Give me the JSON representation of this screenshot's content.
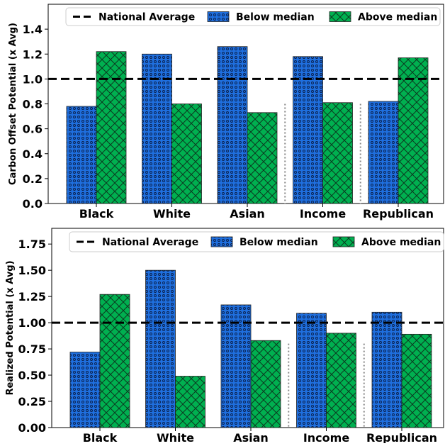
{
  "chart_data": [
    {
      "type": "bar",
      "title": "",
      "xlabel": "",
      "ylabel": "Carbon Offset Potential (x Avg)",
      "ylim": [
        0,
        1.6
      ],
      "yticks": [
        "0.0",
        "0.2",
        "0.4",
        "0.6",
        "0.8",
        "1.0",
        "1.2",
        "1.4"
      ],
      "categories": [
        "Black",
        "White",
        "Asian",
        "Income",
        "Republican"
      ],
      "series": [
        {
          "name": "Below median",
          "values": [
            0.78,
            1.2,
            1.26,
            1.18,
            0.82
          ],
          "color": "#1f6fde",
          "pattern": "dots"
        },
        {
          "name": "Above median",
          "values": [
            1.22,
            0.8,
            0.73,
            0.81,
            1.17
          ],
          "color": "#00b050",
          "pattern": "crosshatch"
        }
      ],
      "reference_line": {
        "name": "National Average",
        "value": 1.0,
        "style": "dashed",
        "color": "#000000"
      },
      "separators_after": [
        "Asian",
        "Income"
      ],
      "legend_position": "top-right",
      "legend": [
        "National Average",
        "Below median",
        "Above median"
      ]
    },
    {
      "type": "bar",
      "title": "",
      "xlabel": "",
      "ylabel": "Realized Potential (x Avg)",
      "ylim": [
        0,
        1.9
      ],
      "yticks": [
        "0.00",
        "0.25",
        "0.50",
        "0.75",
        "1.00",
        "1.25",
        "1.50",
        "1.75"
      ],
      "categories": [
        "Black",
        "White",
        "Asian",
        "Income",
        "Republican"
      ],
      "series": [
        {
          "name": "Below median",
          "values": [
            0.72,
            1.5,
            1.17,
            1.09,
            1.1
          ],
          "color": "#1f6fde",
          "pattern": "dots"
        },
        {
          "name": "Above median",
          "values": [
            1.27,
            0.49,
            0.83,
            0.9,
            0.89
          ],
          "color": "#00b050",
          "pattern": "crosshatch"
        }
      ],
      "reference_line": {
        "name": "National Average",
        "value": 1.0,
        "style": "dashed",
        "color": "#000000"
      },
      "separators_after": [
        "Asian",
        "Income"
      ],
      "legend_position": "top-right",
      "legend": [
        "National Average",
        "Below median",
        "Above median"
      ]
    }
  ]
}
